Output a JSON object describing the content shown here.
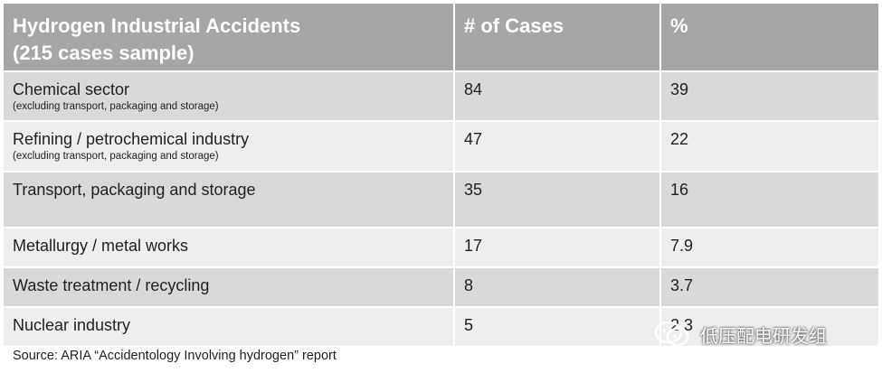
{
  "table": {
    "headers": {
      "accidents": "Hydrogen Industrial Accidents",
      "sample": "(215 cases sample)",
      "cases": "# of Cases",
      "percent": "%"
    },
    "rows": [
      {
        "sector": "Chemical sector",
        "note": "(excluding transport, packaging and storage)",
        "cases": "84",
        "percent": "39"
      },
      {
        "sector": "Refining / petrochemical industry",
        "note": "(excluding transport, packaging and storage)",
        "cases": "47",
        "percent": "22"
      },
      {
        "sector": "Transport, packaging and storage",
        "note": "",
        "cases": "35",
        "percent": "16"
      },
      {
        "sector": "Metallurgy / metal works",
        "note": "",
        "cases": "17",
        "percent": "7.9"
      },
      {
        "sector": "Waste treatment / recycling",
        "note": "",
        "cases": "8",
        "percent": "3.7"
      },
      {
        "sector": "Nuclear industry",
        "note": "",
        "cases": "5",
        "percent": "2.3"
      }
    ]
  },
  "source": "Source: ARIA “Accidentology Involving hydrogen” report",
  "watermark": {
    "text": "低压配电研发组",
    "icon": "wechat-icon"
  },
  "colors": {
    "header": "#a6a6a6",
    "row_dark": "#d9d9d9",
    "row_light": "#eeeeee"
  }
}
